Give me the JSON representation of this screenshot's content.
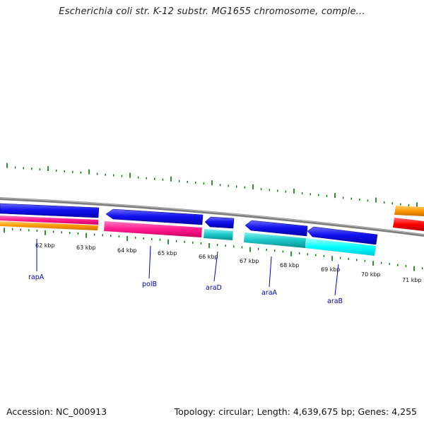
{
  "title": "Escherichia coli str. K-12 substr. MG1655 chromosome, comple...",
  "footer": {
    "accession": "Accession: NC_000913",
    "summary": "Topology: circular; Length: 4,639,675 bp; Genes: 4,255"
  },
  "ruler": {
    "labels": [
      "62 kbp",
      "63 kbp",
      "64 kbp",
      "65 kbp",
      "66 kbp",
      "67 kbp",
      "68 kbp",
      "69 kbp",
      "70 kbp",
      "71 kbp"
    ]
  },
  "genes": [
    {
      "name": "rapA",
      "color": "#0000dd"
    },
    {
      "name": "polB",
      "color": "#0000dd"
    },
    {
      "name": "araD",
      "color": "#0000dd"
    },
    {
      "name": "araA",
      "color": "#0000dd"
    },
    {
      "name": "araB",
      "color": "#0000dd"
    }
  ],
  "colors": {
    "forward_genes": "#0000dd",
    "magenta_track": "#ff1a8c",
    "orange_track": "#ff9900",
    "teal_track": "#1cc7c7",
    "cyan_track": "#00ffff",
    "red_track": "#ff0000",
    "backbone": "#888888",
    "ticks": "#007700"
  }
}
